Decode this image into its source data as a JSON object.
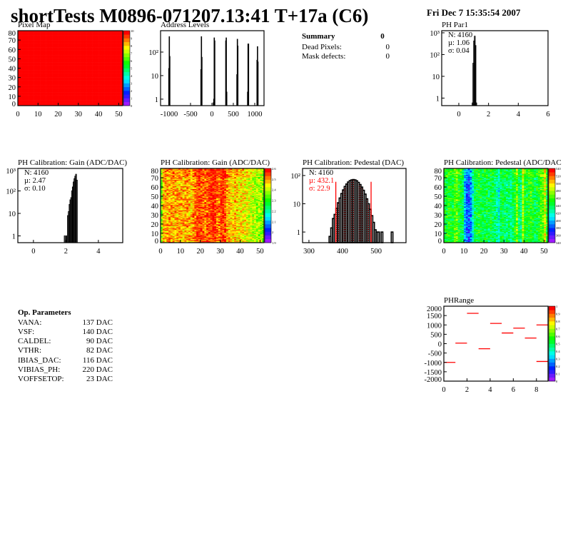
{
  "header": {
    "title": "shortTests M0896-071207.13:41 T+17a (C6)",
    "date": "Fri Dec  7 15:35:54 2007"
  },
  "summary": {
    "title": "Summary",
    "value": "0",
    "rows": [
      {
        "label": "Dead Pixels:",
        "value": "0"
      },
      {
        "label": "Mask defects:",
        "value": "0"
      }
    ]
  },
  "op_params": {
    "title": "Op. Parameters",
    "rows": [
      {
        "label": "VANA:",
        "value": "137 DAC"
      },
      {
        "label": "VSF:",
        "value": "140 DAC"
      },
      {
        "label": "CALDEL:",
        "value": "90 DAC"
      },
      {
        "label": "VTHR:",
        "value": "82 DAC"
      },
      {
        "label": "IBIAS_DAC:",
        "value": "116 DAC"
      },
      {
        "label": "VIBIAS_PH:",
        "value": "220 DAC"
      },
      {
        "label": "VOFFSETOP:",
        "value": "23 DAC"
      }
    ]
  },
  "colors": {
    "hist_line": "#000000",
    "stats_highlight": "#ff0000",
    "fit_lines": "#ff0000"
  },
  "chart_data": [
    {
      "type": "heatmap",
      "title": "Pixel Map",
      "xlim": [
        0,
        52
      ],
      "ylim": [
        0,
        80
      ],
      "zlim": [
        0,
        10
      ],
      "xticks": [
        0,
        10,
        20,
        30,
        40,
        50
      ],
      "yticks": [
        0,
        10,
        20,
        30,
        40,
        50,
        60,
        70,
        80
      ],
      "zticks": [
        "0",
        "1",
        "2",
        "3",
        "4",
        "5",
        "6",
        "7",
        "8",
        "9",
        "10"
      ],
      "uniform_value": 10
    },
    {
      "type": "bar",
      "title": "Address Levels",
      "ylog": true,
      "xlim": [
        -1200,
        1217
      ],
      "ylim": [
        0.53,
        810
      ],
      "xticks": [
        -1000,
        -500,
        0,
        500,
        1000
      ],
      "yticks": [
        1,
        10,
        100
      ],
      "ytick_labels": [
        "1",
        "10",
        "10²"
      ],
      "bin_width": 10,
      "peaks": [
        {
          "x": -1010,
          "counts": [
            20,
            450,
            65
          ]
        },
        {
          "x": -260,
          "counts": [
            18,
            450,
            60
          ]
        },
        {
          "x": 30,
          "counts": [
            0.7,
            1,
            400,
            300
          ]
        },
        {
          "x": 320,
          "counts": [
            300,
            400,
            2
          ]
        },
        {
          "x": 580,
          "counts": [
            11,
            350,
            180
          ]
        },
        {
          "x": 830,
          "counts": [
            2,
            220,
            220
          ]
        },
        {
          "x": 1050,
          "counts": [
            45,
            170,
            38
          ]
        }
      ]
    },
    {
      "type": "bar",
      "title": "PH Par1",
      "ylog": true,
      "xlim": [
        -1.15,
        6
      ],
      "ylim": [
        0.45,
        1250
      ],
      "xticks": [
        0,
        2,
        4,
        6
      ],
      "yticks": [
        1,
        10,
        100,
        1000
      ],
      "ytick_labels": [
        "1",
        "10",
        "10²",
        "10³"
      ],
      "bin_width": 0.05,
      "bin_start": 0.9,
      "values": [
        0.6,
        40,
        420,
        700,
        260,
        0.6
      ],
      "stats": {
        "n": "N: 4160",
        "mean": "µ: 1.06",
        "sigma": "σ: 0.04"
      }
    },
    {
      "type": "bar",
      "title": "PH Calibration: Gain (ADC/DAC)",
      "ylog": true,
      "xlim": [
        -0.96,
        5.5
      ],
      "ylim": [
        0.5,
        1000
      ],
      "xticks": [
        0,
        2,
        4
      ],
      "yticks": [
        1,
        10,
        100,
        1000
      ],
      "ytick_labels": [
        "1",
        "10",
        "10²",
        "10³"
      ],
      "bin_width": 0.05,
      "bin_start": 1.9,
      "values": [
        1,
        0,
        1,
        0,
        8,
        12,
        25,
        40,
        50,
        100,
        150,
        250,
        350,
        450,
        550,
        300,
        0
      ],
      "stats": {
        "n": "N: 4160",
        "mean": "µ: 2.47",
        "sigma": "σ: 0.10"
      }
    },
    {
      "type": "heatmap",
      "title": "PH Calibration: Gain (ADC/DAC)",
      "xlim": [
        0,
        52
      ],
      "ylim": [
        0,
        80
      ],
      "zlim": [
        1.85,
        2.65
      ],
      "xticks": [
        0,
        10,
        20,
        30,
        40,
        50
      ],
      "yticks": [
        0,
        10,
        20,
        30,
        40,
        50,
        60,
        70,
        80
      ],
      "zticks": [
        "1.9",
        "2",
        "2.1",
        "2.2",
        "2.3",
        "2.4",
        "2.5",
        "2.6"
      ],
      "column_means": [
        2.38,
        2.5,
        2.52,
        2.52,
        2.53,
        2.52,
        2.52,
        2.5,
        2.52,
        2.53,
        2.52,
        2.5,
        2.52,
        2.53,
        2.52,
        2.5,
        2.53,
        2.55,
        2.58,
        2.6,
        2.58,
        2.56,
        2.55,
        2.57,
        2.58,
        2.6,
        2.62,
        2.6,
        2.56,
        2.55,
        2.58,
        2.6,
        2.57,
        2.52,
        2.5,
        2.5,
        2.48,
        2.5,
        2.49,
        2.47,
        2.48,
        2.47,
        2.46,
        2.45,
        2.44,
        2.42,
        2.42,
        2.41,
        2.4,
        2.4,
        2.39,
        2.38
      ]
    },
    {
      "type": "bar",
      "title": "PH Calibration: Pedestal (DAC)",
      "ylog": true,
      "xlim": [
        281,
        589
      ],
      "ylim": [
        0.42,
        178
      ],
      "xticks": [
        300,
        400,
        500
      ],
      "yticks": [
        1,
        10,
        100
      ],
      "ytick_labels": [
        "1",
        "10",
        "10²"
      ],
      "bin_width": 5,
      "bin_start": 360,
      "values": [
        0.7,
        1.4,
        3,
        4.2,
        6.9,
        10.9,
        16,
        23,
        31,
        41,
        50,
        59,
        66,
        70,
        72,
        70,
        65,
        57,
        48,
        39,
        30,
        22,
        15,
        10,
        6.4,
        3.8,
        2.2,
        1.2,
        1,
        1,
        0,
        1,
        0,
        0,
        0,
        0,
        0,
        1
      ],
      "fit_range": [
        380,
        485
      ],
      "stats": {
        "n": "N: 4160",
        "mean": "µ: 432.1",
        "sigma": "σ: 22.9"
      }
    },
    {
      "type": "heatmap",
      "title": "PH Calibration: Pedestal (ADC/DAC",
      "xlim": [
        0,
        52
      ],
      "ylim": [
        0,
        80
      ],
      "zlim": [
        340,
        540
      ],
      "xticks": [
        0,
        10,
        20,
        30,
        40,
        50
      ],
      "yticks": [
        0,
        10,
        20,
        30,
        40,
        50,
        60,
        70,
        80
      ],
      "zticks": [
        "340",
        "360",
        "380",
        "400",
        "420",
        "440",
        "460",
        "480",
        "500",
        "520",
        "540"
      ],
      "column_means": [
        445,
        450,
        455,
        450,
        445,
        460,
        465,
        450,
        445,
        440,
        400,
        385,
        380,
        390,
        420,
        440,
        445,
        450,
        445,
        440,
        440,
        445,
        440,
        445,
        440,
        435,
        430,
        415,
        440,
        445,
        440,
        435,
        440,
        430,
        440,
        450,
        470,
        440,
        430,
        480,
        450,
        445,
        450,
        455,
        445,
        440,
        445,
        450,
        460,
        465,
        490,
        450
      ]
    },
    {
      "type": "heatmap-segments",
      "title": "PHRange",
      "xlim": [
        0,
        9
      ],
      "ylim": [
        -2000,
        2000
      ],
      "zlim": [
        0,
        1
      ],
      "xticks": [
        0,
        2,
        4,
        6,
        8
      ],
      "yticks": [
        -2000,
        -1500,
        -1000,
        -500,
        0,
        500,
        1000,
        1500,
        2000
      ],
      "zticks": [
        "0",
        "0.1",
        "0.2",
        "0.3",
        "0.4",
        "0.5",
        "0.6",
        "0.7",
        "0.8",
        "0.9",
        "1"
      ],
      "segments": [
        {
          "bin": 0,
          "value": -1000
        },
        {
          "bin": 1,
          "value": 30
        },
        {
          "bin": 2,
          "value": 1620
        },
        {
          "bin": 3,
          "value": -270
        },
        {
          "bin": 4,
          "value": 1080
        },
        {
          "bin": 5,
          "value": 570
        },
        {
          "bin": 6,
          "value": 830
        },
        {
          "bin": 7,
          "value": 300
        },
        {
          "bin": 8,
          "value": 1000
        },
        {
          "bin": 8,
          "value": -950
        }
      ]
    }
  ]
}
